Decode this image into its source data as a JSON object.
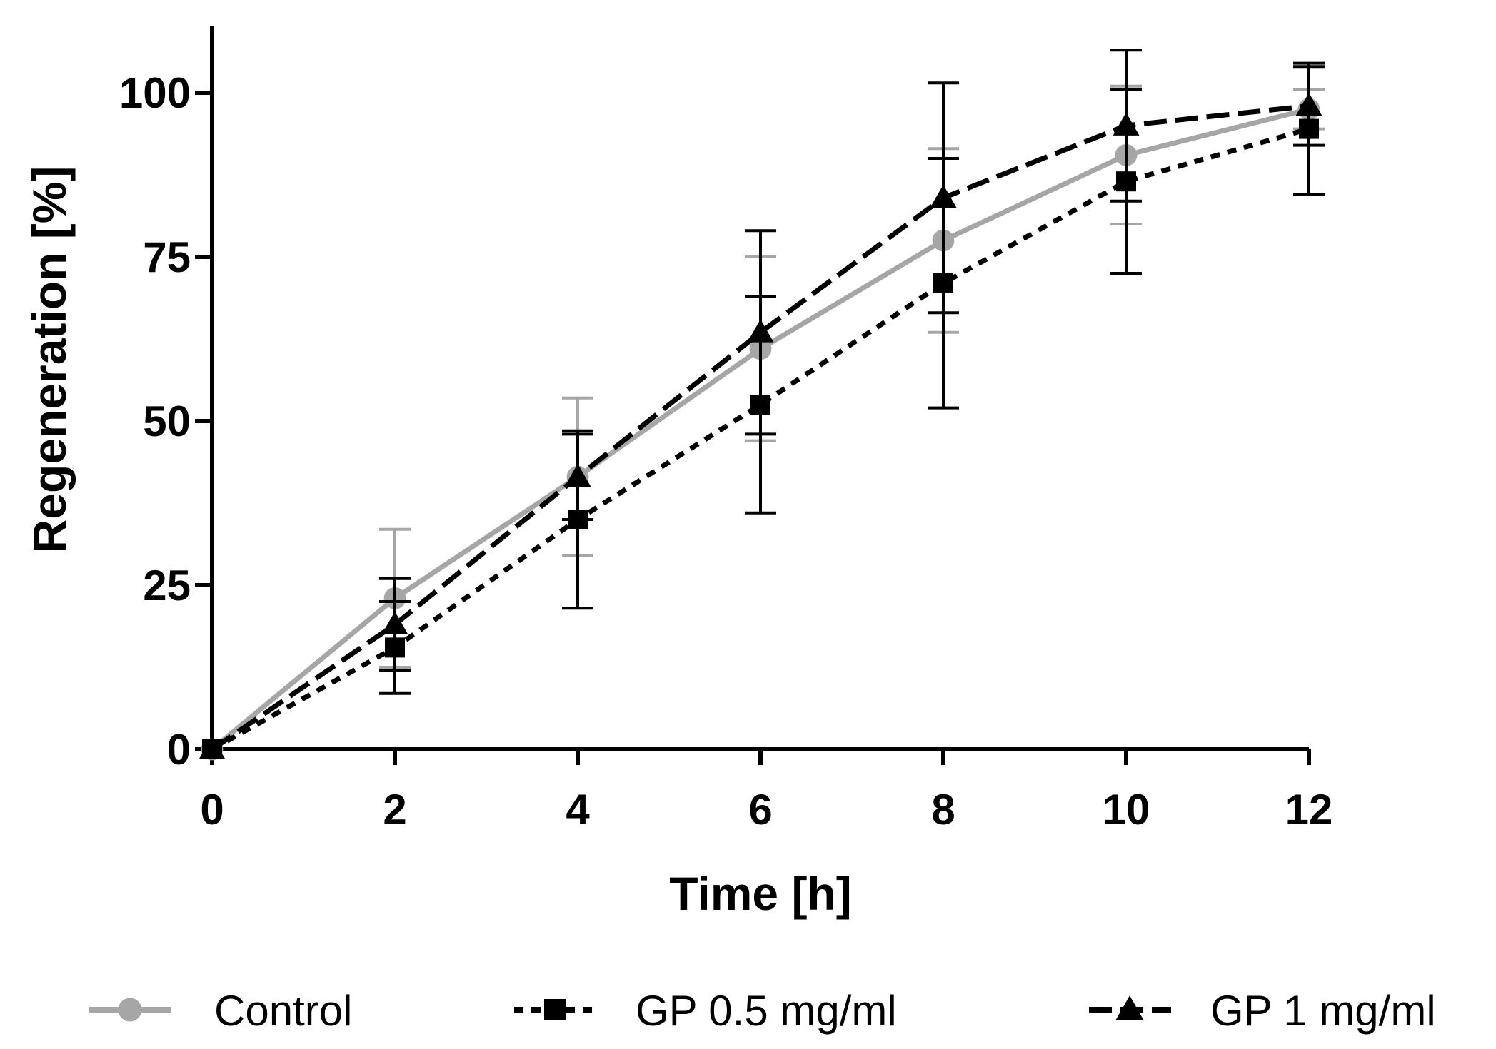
{
  "chart_data": {
    "type": "line",
    "title": "",
    "xlabel": "Time [h]",
    "ylabel": "Regeneration [%]",
    "xlim": [
      0,
      12
    ],
    "ylim": [
      0,
      110
    ],
    "x_ticks": [
      0,
      2,
      4,
      6,
      8,
      10,
      12
    ],
    "x_tick_labels": [
      "0",
      "2",
      "4",
      "6",
      "8",
      "10",
      "12"
    ],
    "y_ticks": [
      0,
      25,
      50,
      75,
      100
    ],
    "y_tick_labels": [
      "0",
      "25",
      "50",
      "75",
      "100"
    ],
    "grid": false,
    "legend_position": "bottom",
    "x": [
      0,
      2,
      4,
      6,
      8,
      10,
      12
    ],
    "series": [
      {
        "name": "Control",
        "color": "#a6a6a6",
        "line_style": "solid",
        "marker": "circle",
        "values": [
          0,
          23,
          41.5,
          61,
          77.5,
          90.5,
          97.5
        ],
        "error": [
          0,
          10.5,
          12,
          14,
          14,
          10.5,
          3
        ]
      },
      {
        "name": "GP 0.5 mg/ml",
        "color": "#000000",
        "line_style": "dotted",
        "marker": "square",
        "values": [
          0,
          15.5,
          35,
          52.5,
          71,
          86.5,
          94.5
        ],
        "error": [
          0,
          7,
          13.5,
          16.5,
          19,
          14,
          10
        ]
      },
      {
        "name": "GP 1 mg/ml",
        "color": "#000000",
        "line_style": "dashed",
        "marker": "triangle",
        "values": [
          0,
          19,
          41.5,
          63.5,
          84,
          95,
          98
        ],
        "error": [
          0,
          7,
          6.5,
          15.5,
          17.5,
          11.5,
          6
        ]
      }
    ]
  }
}
